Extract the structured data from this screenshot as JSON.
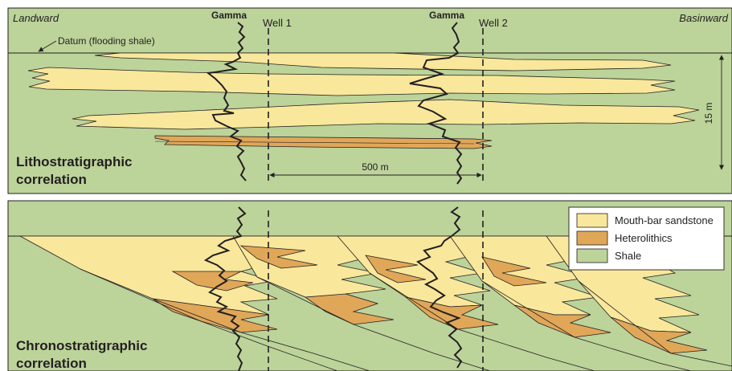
{
  "top_panel": {
    "landward": "Landward",
    "basinward": "Basinward",
    "gamma_1": "Gamma",
    "gamma_2": "Gamma",
    "well_1": "Well 1",
    "well_2": "Well 2",
    "datum": "Datum (flooding shale)",
    "title_line1": "Lithostratigraphic",
    "title_line2": "correlation",
    "distance": "500 m",
    "thickness": "15 m"
  },
  "bottom_panel": {
    "title_line1": "Chronostratigraphic",
    "title_line2": "correlation"
  },
  "legend": {
    "items": [
      {
        "label": "Mouth-bar sandstone",
        "color": "#f9e79b"
      },
      {
        "label": "Heterolithics",
        "color": "#e0a759"
      },
      {
        "label": "Shale",
        "color": "#bcd39a"
      }
    ]
  },
  "colors": {
    "shale": "#bcd39a",
    "sandstone": "#f9e79b",
    "heterolithics": "#e0a759",
    "line": "#231f20"
  }
}
